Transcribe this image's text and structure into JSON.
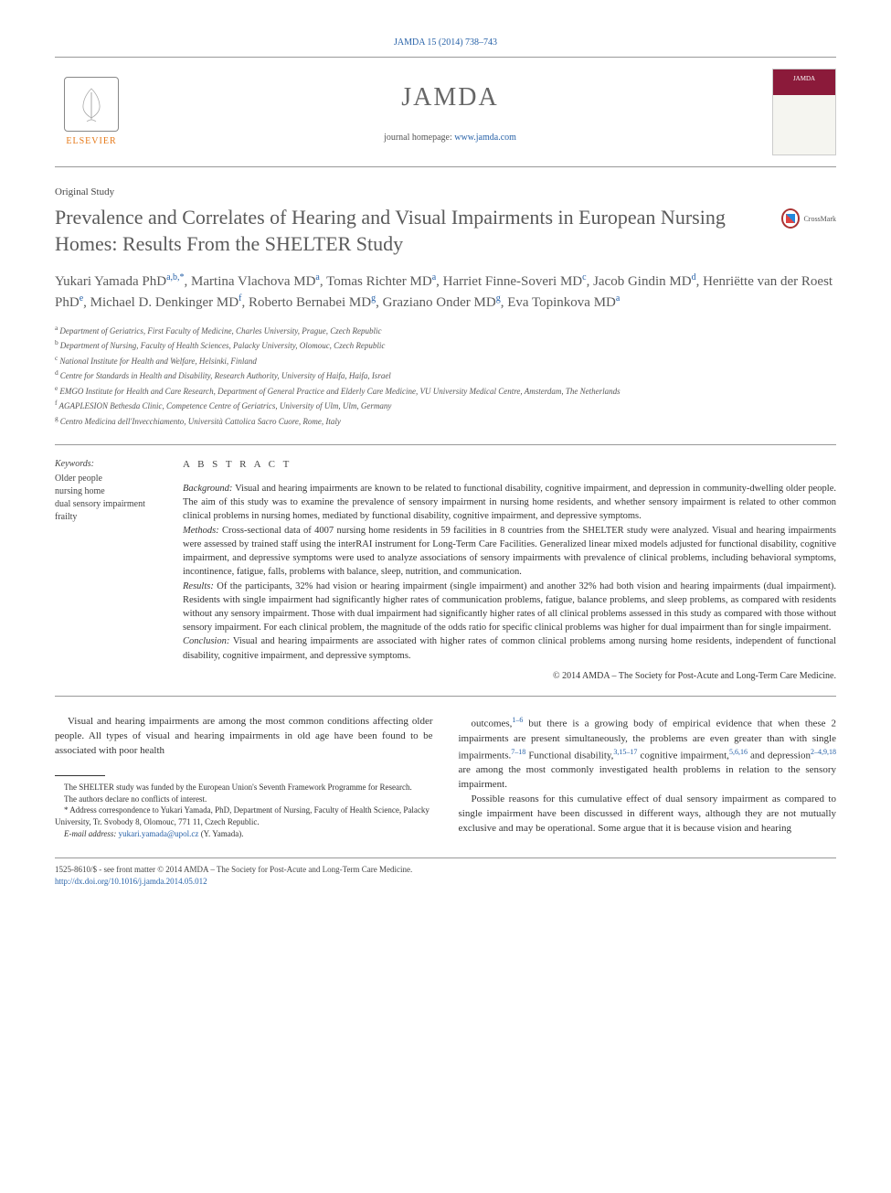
{
  "citation": "JAMDA 15 (2014) 738–743",
  "journal": {
    "name": "JAMDA",
    "homepage_label": "journal homepage: ",
    "homepage_url": "www.jamda.com",
    "publisher": "ELSEVIER"
  },
  "article_type": "Original Study",
  "title": "Prevalence and Correlates of Hearing and Visual Impairments in European Nursing Homes: Results From the SHELTER Study",
  "crossmark": "CrossMark",
  "authors_html": "Yukari Yamada PhD<sup>a,b,*</sup>, Martina Vlachova MD<sup>a</sup>, Tomas Richter MD<sup>a</sup>, Harriet Finne-Soveri MD<sup>c</sup>, Jacob Gindin MD<sup>d</sup>, Henriëtte van der Roest PhD<sup>e</sup>, Michael D. Denkinger MD<sup>f</sup>, Roberto Bernabei MD<sup>g</sup>, Graziano Onder MD<sup>g</sup>, Eva Topinkova MD<sup>a</sup>",
  "affiliations": [
    {
      "sup": "a",
      "text": "Department of Geriatrics, First Faculty of Medicine, Charles University, Prague, Czech Republic"
    },
    {
      "sup": "b",
      "text": "Department of Nursing, Faculty of Health Sciences, Palacky University, Olomouc, Czech Republic"
    },
    {
      "sup": "c",
      "text": "National Institute for Health and Welfare, Helsinki, Finland"
    },
    {
      "sup": "d",
      "text": "Centre for Standards in Health and Disability, Research Authority, University of Haifa, Haifa, Israel"
    },
    {
      "sup": "e",
      "text": "EMGO Institute for Health and Care Research, Department of General Practice and Elderly Care Medicine, VU University Medical Centre, Amsterdam, The Netherlands"
    },
    {
      "sup": "f",
      "text": "AGAPLESION Bethesda Clinic, Competence Centre of Geriatrics, University of Ulm, Ulm, Germany"
    },
    {
      "sup": "g",
      "text": "Centro Medicina dell'Invecchiamento, Università Cattolica Sacro Cuore, Rome, Italy"
    }
  ],
  "keywords": {
    "label": "Keywords:",
    "items": [
      "Older people",
      "nursing home",
      "dual sensory impairment",
      "frailty"
    ]
  },
  "abstract": {
    "heading": "A B S T R A C T",
    "sections": [
      {
        "label": "Background:",
        "text": " Visual and hearing impairments are known to be related to functional disability, cognitive impairment, and depression in community-dwelling older people. The aim of this study was to examine the prevalence of sensory impairment in nursing home residents, and whether sensory impairment is related to other common clinical problems in nursing homes, mediated by functional disability, cognitive impairment, and depressive symptoms."
      },
      {
        "label": "Methods:",
        "text": " Cross-sectional data of 4007 nursing home residents in 59 facilities in 8 countries from the SHELTER study were analyzed. Visual and hearing impairments were assessed by trained staff using the interRAI instrument for Long-Term Care Facilities. Generalized linear mixed models adjusted for functional disability, cognitive impairment, and depressive symptoms were used to analyze associations of sensory impairments with prevalence of clinical problems, including behavioral symptoms, incontinence, fatigue, falls, problems with balance, sleep, nutrition, and communication."
      },
      {
        "label": "Results:",
        "text": " Of the participants, 32% had vision or hearing impairment (single impairment) and another 32% had both vision and hearing impairments (dual impairment). Residents with single impairment had significantly higher rates of communication problems, fatigue, balance problems, and sleep problems, as compared with residents without any sensory impairment. Those with dual impairment had significantly higher rates of all clinical problems assessed in this study as compared with those without sensory impairment. For each clinical problem, the magnitude of the odds ratio for specific clinical problems was higher for dual impairment than for single impairment."
      },
      {
        "label": "Conclusion:",
        "text": " Visual and hearing impairments are associated with higher rates of common clinical problems among nursing home residents, independent of functional disability, cognitive impairment, and depressive symptoms."
      }
    ],
    "copyright": "© 2014 AMDA – The Society for Post-Acute and Long-Term Care Medicine."
  },
  "body": {
    "left": "Visual and hearing impairments are among the most common conditions affecting older people. All types of visual and hearing impairments in old age have been found to be associated with poor health",
    "right_p1": "outcomes,<sup>1–6</sup> but there is a growing body of empirical evidence that when these 2 impairments are present simultaneously, the problems are even greater than with single impairments.<sup>7–18</sup> Functional disability,<sup>3,15–17</sup> cognitive impairment,<sup>5,6,16</sup> and depression<sup>2–4,9,18</sup> are among the most commonly investigated health problems in relation to the sensory impairment.",
    "right_p2": "Possible reasons for this cumulative effect of dual sensory impairment as compared to single impairment have been discussed in different ways, although they are not mutually exclusive and may be operational. Some argue that it is because vision and hearing"
  },
  "footnotes": {
    "funding": "The SHELTER study was funded by the European Union's Seventh Framework Programme for Research.",
    "conflicts": "The authors declare no conflicts of interest.",
    "correspondence": "* Address correspondence to Yukari Yamada, PhD, Department of Nursing, Faculty of Health Science, Palacky University, Tr. Svobody 8, Olomouc, 771 11, Czech Republic.",
    "email_label": "E-mail address: ",
    "email": "yukari.yamada@upol.cz",
    "email_suffix": " (Y. Yamada)."
  },
  "footer": {
    "issn": "1525-8610/$ - see front matter © 2014 AMDA – The Society for Post-Acute and Long-Term Care Medicine.",
    "doi": "http://dx.doi.org/10.1016/j.jamda.2014.05.012"
  },
  "colors": {
    "link": "#2862a8",
    "heading_gray": "#5a5a5a",
    "elsevier_orange": "#e67817"
  }
}
